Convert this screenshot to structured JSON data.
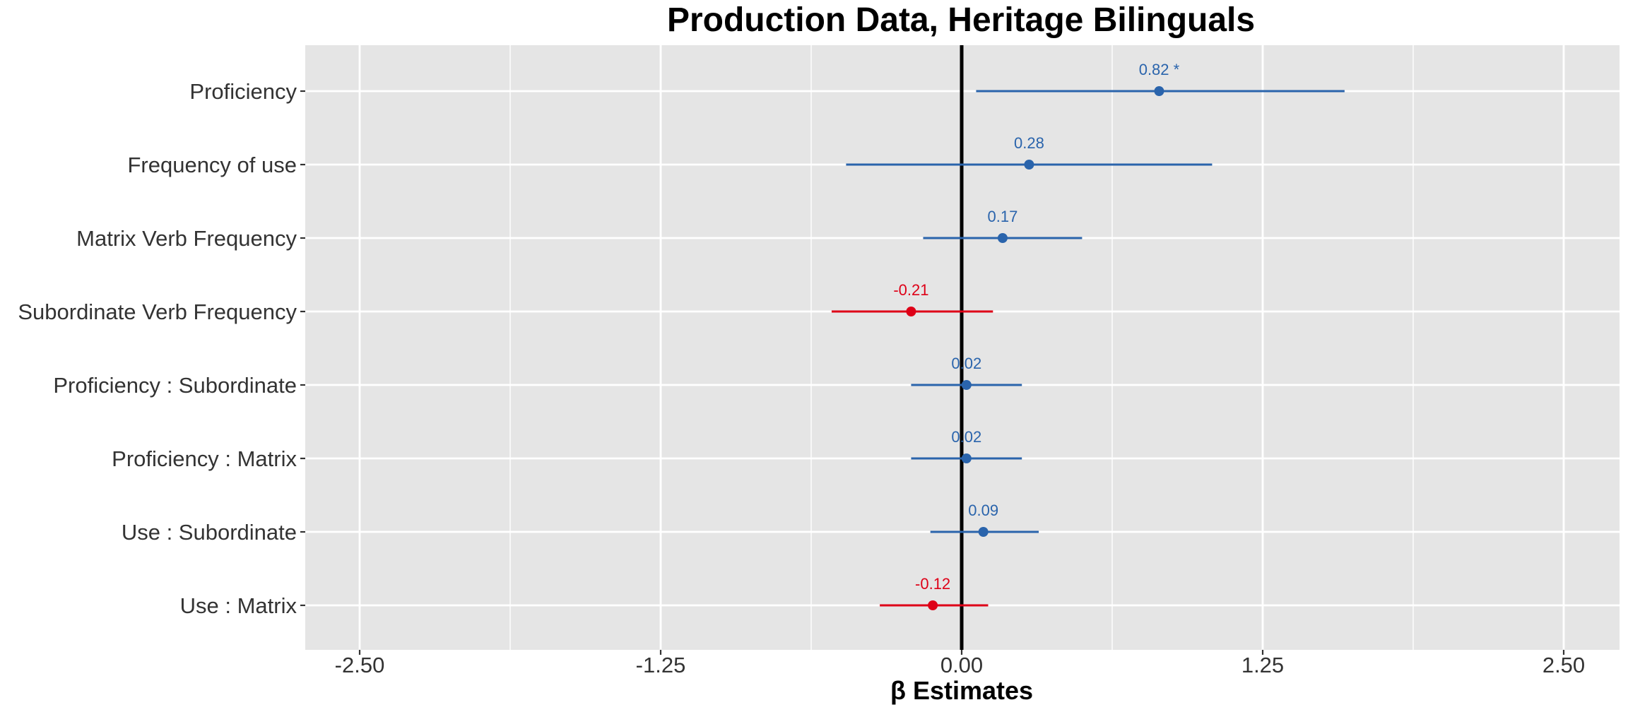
{
  "chart_data": {
    "type": "forest",
    "title": "Production Data, Heritage Bilinguals",
    "xlabel": "β Estimates",
    "ylabel": "",
    "xlim": [
      -2.5,
      2.5
    ],
    "x_ticks": [
      "-2.50",
      "-1.25",
      "0.00",
      "1.25",
      "2.50"
    ],
    "x_tick_values": [
      -2.5,
      -1.25,
      0,
      1.25,
      2.5
    ],
    "grid": true,
    "reference_line": 0,
    "colors": {
      "positive": "#2a64ac",
      "negative": "#de0017",
      "panel": "#e5e5e5",
      "grid": "#ffffff",
      "reference": "#000000"
    },
    "terms": [
      {
        "name": "Proficiency",
        "estimate": 0.82,
        "ci_low": 0.06,
        "ci_high": 1.59,
        "label": "0.82 *"
      },
      {
        "name": "Frequency of use",
        "estimate": 0.28,
        "ci_low": -0.48,
        "ci_high": 1.04,
        "label": "0.28"
      },
      {
        "name": "Matrix Verb Frequency",
        "estimate": 0.17,
        "ci_low": -0.16,
        "ci_high": 0.5,
        "label": "0.17"
      },
      {
        "name": "Subordinate Verb Frequency",
        "estimate": -0.21,
        "ci_low": -0.54,
        "ci_high": 0.13,
        "label": "-0.21"
      },
      {
        "name": "Proficiency : Subordinate",
        "estimate": 0.02,
        "ci_low": -0.21,
        "ci_high": 0.25,
        "label": "0.02"
      },
      {
        "name": "Proficiency : Matrix",
        "estimate": 0.02,
        "ci_low": -0.21,
        "ci_high": 0.25,
        "label": "0.02"
      },
      {
        "name": "Use : Subordinate",
        "estimate": 0.09,
        "ci_low": -0.13,
        "ci_high": 0.32,
        "label": "0.09"
      },
      {
        "name": "Use : Matrix",
        "estimate": -0.12,
        "ci_low": -0.34,
        "ci_high": 0.11,
        "label": "-0.12"
      }
    ]
  }
}
